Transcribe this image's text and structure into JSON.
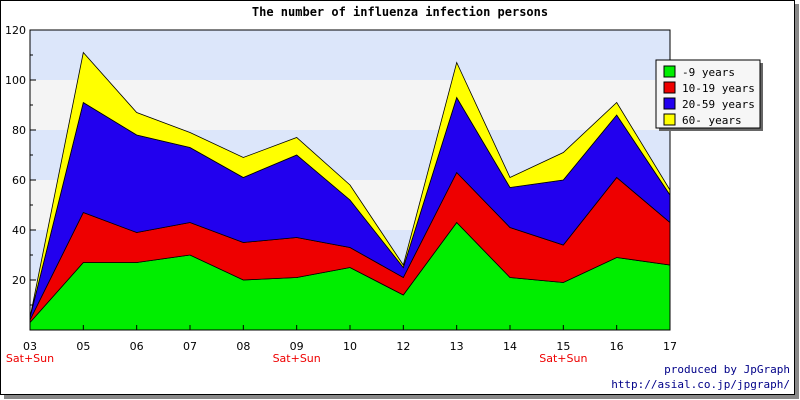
{
  "chart_data": {
    "type": "area",
    "stacked": true,
    "title": "The number of influenza infection persons",
    "xlabel": "",
    "ylabel": "",
    "categories": [
      "03",
      "05",
      "06",
      "07",
      "08",
      "09",
      "10",
      "12",
      "13",
      "14",
      "15",
      "16",
      "17"
    ],
    "weekend_label": "Sat+Sun",
    "weekend_categories": [
      "03",
      "09",
      "15"
    ],
    "ylim": [
      0,
      120
    ],
    "yticks": [
      20,
      40,
      60,
      80,
      100,
      120
    ],
    "grid": true,
    "legend_position": "top-right",
    "series": [
      {
        "name": "-9 years",
        "color": "#00ee00",
        "values": [
          3,
          27,
          27,
          30,
          20,
          21,
          25,
          14,
          43,
          21,
          19,
          29,
          26
        ]
      },
      {
        "name": "10-19 years",
        "color": "#ee0000",
        "values": [
          1,
          20,
          12,
          13,
          15,
          16,
          8,
          7,
          20,
          20,
          15,
          32,
          17
        ]
      },
      {
        "name": "20-59 years",
        "color": "#2200ee",
        "values": [
          1,
          44,
          39,
          30,
          26,
          33,
          19,
          4,
          30,
          16,
          26,
          25,
          11
        ]
      },
      {
        "name": "60- years",
        "color": "#ffff00",
        "values": [
          0,
          20,
          9,
          6,
          8,
          7,
          6,
          1,
          14,
          4,
          11,
          5,
          2
        ]
      }
    ]
  },
  "credits": {
    "line1": "produced by JpGraph",
    "line2": "http://asial.co.jp/jpgraph/"
  }
}
